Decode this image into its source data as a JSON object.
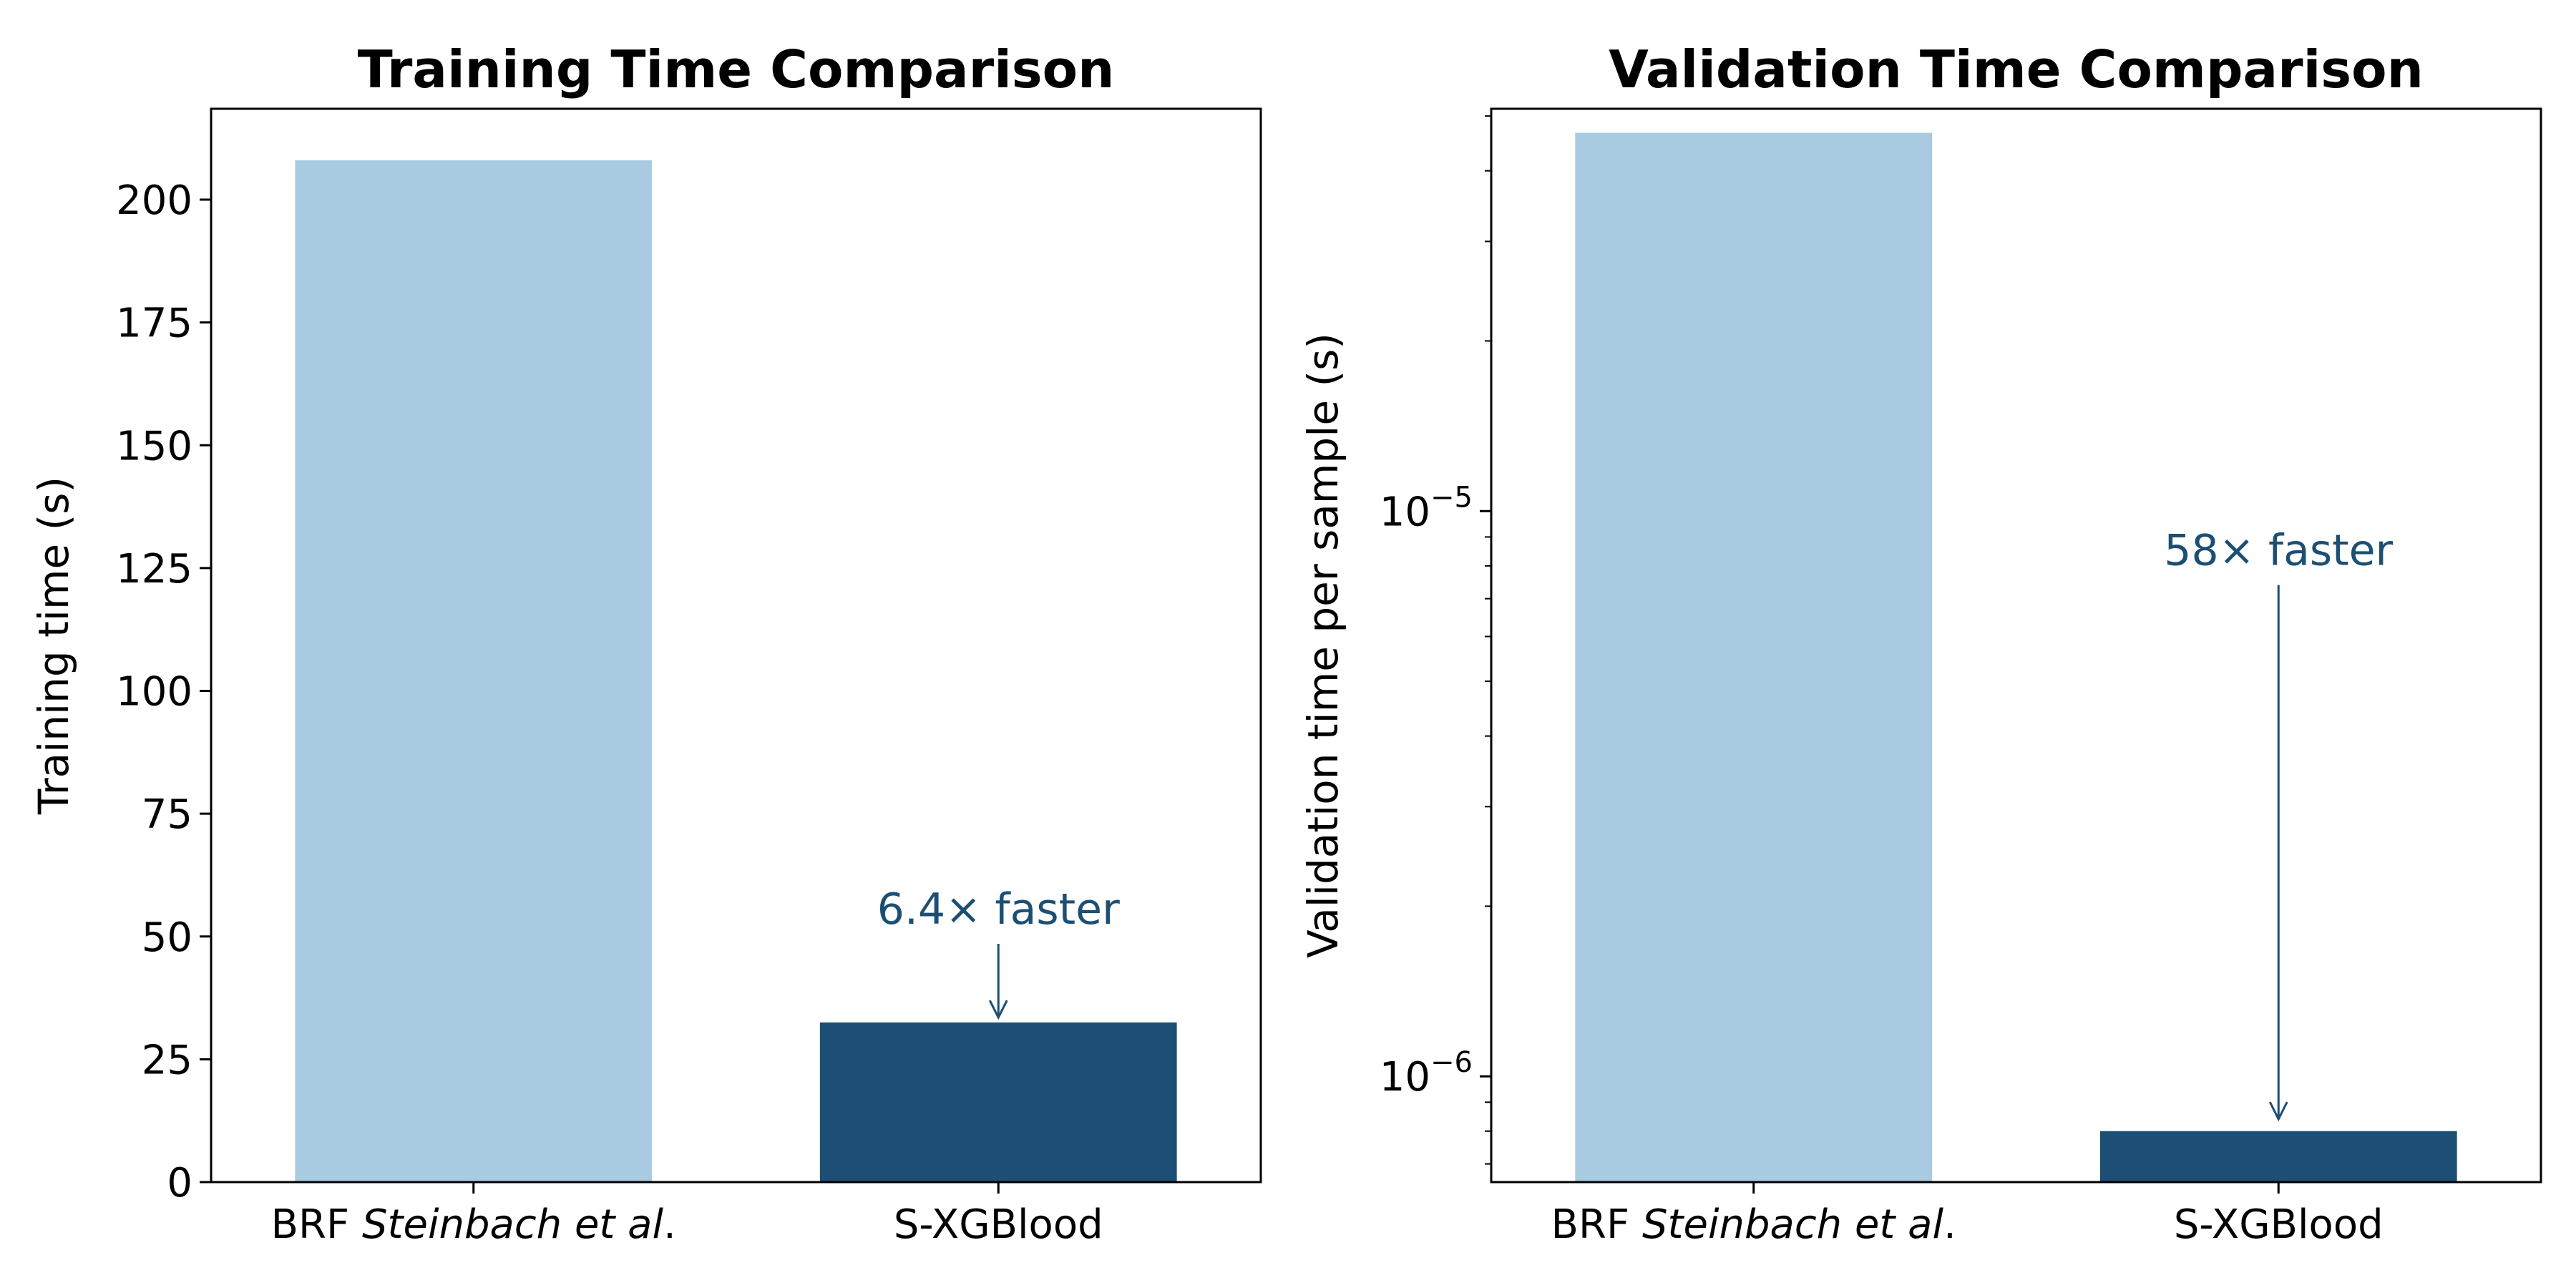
{
  "colors": {
    "brf_bar": "#a9cbe1",
    "sxg_bar": "#1c4f73",
    "annotation": "#1c4f73"
  },
  "chart_data": [
    {
      "type": "bar",
      "title": "Training Time Comparison",
      "xlabel": "",
      "ylabel": "Training time (s)",
      "categories": [
        {
          "prefix": "BRF ",
          "italic": "Steinbach et al",
          "suffix": "."
        },
        {
          "prefix": "S-XGBlood",
          "italic": "",
          "suffix": ""
        }
      ],
      "values": [
        208.0,
        32.5
      ],
      "yscale": "linear",
      "ylim": [
        0,
        218.5
      ],
      "yticks": [
        0,
        25,
        50,
        75,
        100,
        125,
        150,
        175,
        200
      ],
      "ytick_labels": [
        "0",
        "25",
        "50",
        "75",
        "100",
        "125",
        "150",
        "175",
        "200"
      ],
      "grid": false,
      "legend": "none",
      "annotation": {
        "text": "6.4× faster",
        "bar_index": 1,
        "arrow_from": 48.5,
        "arrow_to": 33.5
      }
    },
    {
      "type": "bar",
      "title": "Validation Time Comparison",
      "xlabel": "",
      "ylabel": "Validation time per sample (s)",
      "categories": [
        {
          "prefix": "BRF ",
          "italic": "Steinbach et al",
          "suffix": "."
        },
        {
          "prefix": "S-XGBlood",
          "italic": "",
          "suffix": ""
        }
      ],
      "values": [
        4.67e-05,
        8e-07
      ],
      "yscale": "log",
      "ylim": [
        6.5e-07,
        5.15e-05
      ],
      "yticks": [
        1e-06,
        1e-05
      ],
      "ytick_labels": [
        {
          "base": "10",
          "exp": "−6"
        },
        {
          "base": "10",
          "exp": "−5"
        }
      ],
      "grid": false,
      "legend": "none",
      "annotation": {
        "text": "58× faster",
        "bar_index": 1,
        "arrow_from": 7.4e-06,
        "arrow_to": 8.4e-07
      }
    }
  ]
}
